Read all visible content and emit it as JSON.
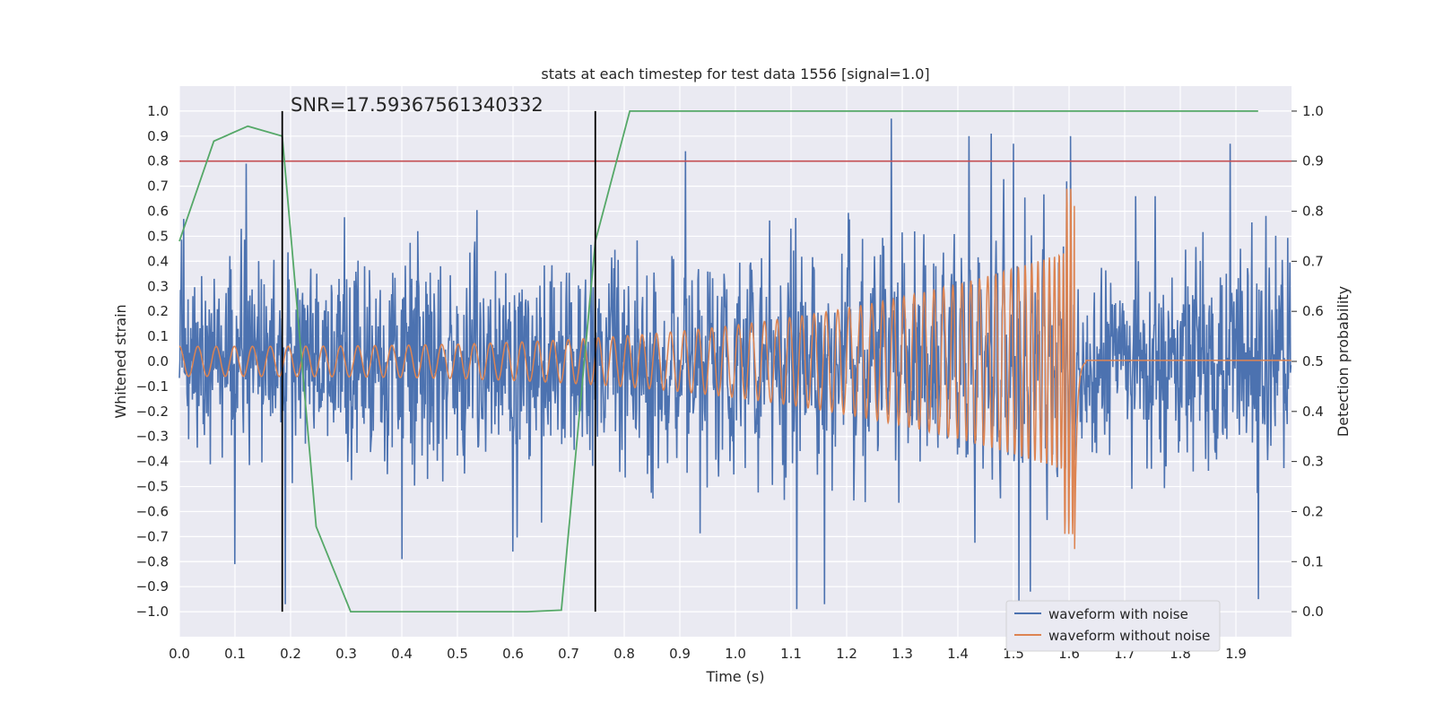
{
  "chart_data": {
    "type": "line",
    "title": "stats at each timestep for test data 1556 [signal=1.0]",
    "xlabel": "Time (s)",
    "ylabel": "Whitened strain",
    "y2label": "Detection probability",
    "annotation": "SNR=17.59367561340332",
    "xlim": [
      0.0,
      2.0
    ],
    "ylim": [
      -1.1,
      1.1
    ],
    "y2lim": [
      -0.05,
      1.05
    ],
    "x_ticks": [
      "0.0",
      "0.1",
      "0.2",
      "0.3",
      "0.4",
      "0.5",
      "0.6",
      "0.7",
      "0.8",
      "0.9",
      "1.0",
      "1.1",
      "1.2",
      "1.3",
      "1.4",
      "1.5",
      "1.6",
      "1.7",
      "1.8",
      "1.9"
    ],
    "y_ticks": [
      "1.0",
      "0.9",
      "0.8",
      "0.7",
      "0.6",
      "0.5",
      "0.4",
      "0.3",
      "0.2",
      "0.1",
      "0.0",
      "−0.1",
      "−0.2",
      "−0.3",
      "−0.4",
      "−0.5",
      "−0.6",
      "−0.7",
      "−0.8",
      "−0.9",
      "−1.0"
    ],
    "y2_ticks": [
      "1.0",
      "0.9",
      "0.8",
      "0.7",
      "0.6",
      "0.5",
      "0.4",
      "0.3",
      "0.2",
      "0.1",
      "0.0"
    ],
    "grid": true,
    "legend_position": "bottom-right",
    "colors": {
      "noisy": "#4c72b0",
      "clean": "#dd8452",
      "probability": "#55a868",
      "threshold": "#c44e52",
      "markers": "#000000",
      "background": "#eaeaf2"
    },
    "series": [
      {
        "name": "waveform with noise",
        "axis": "left",
        "style": "noisy",
        "duration": 2.0,
        "samples": 2048,
        "noise_std": 0.28,
        "noise_peaks": [
          {
            "x": 0.12,
            "y": 0.79
          },
          {
            "x": 0.1,
            "y": -0.81
          },
          {
            "x": 0.19,
            "y": -0.97
          },
          {
            "x": 0.4,
            "y": -0.79
          },
          {
            "x": 0.6,
            "y": -0.76
          },
          {
            "x": 0.91,
            "y": 0.84
          },
          {
            "x": 1.11,
            "y": -0.99
          },
          {
            "x": 1.16,
            "y": -0.97
          },
          {
            "x": 1.28,
            "y": 0.97
          },
          {
            "x": 1.42,
            "y": 0.9
          },
          {
            "x": 1.46,
            "y": 0.91
          },
          {
            "x": 1.51,
            "y": -0.96
          },
          {
            "x": 1.53,
            "y": -0.92
          },
          {
            "x": 1.5,
            "y": 0.87
          },
          {
            "x": 1.89,
            "y": 0.87
          },
          {
            "x": 1.94,
            "y": -0.95
          },
          {
            "x": 1.72,
            "y": 0.66
          }
        ]
      },
      {
        "name": "waveform without noise",
        "axis": "left",
        "style": "clean",
        "t_merger": 1.61,
        "amp_start": 0.06,
        "amp_end": 0.45,
        "freq_start_hz": 30,
        "freq_end_hz": 140,
        "merger_peak": 0.69,
        "merger_trough": -0.75
      },
      {
        "name": "detection probability",
        "axis": "right",
        "style": "probability",
        "x": [
          0.0,
          0.062,
          0.123,
          0.185,
          0.246,
          0.308,
          0.37,
          0.431,
          0.493,
          0.554,
          0.625,
          0.687,
          0.748,
          0.81,
          0.871,
          1.0,
          1.2,
          1.4,
          1.6,
          1.8,
          1.94
        ],
        "y": [
          0.74,
          0.94,
          0.97,
          0.95,
          0.17,
          0.0,
          0.0,
          0.0,
          0.0,
          0.0,
          0.0,
          0.003,
          0.74,
          1.0,
          1.0,
          1.0,
          1.0,
          1.0,
          1.0,
          1.0,
          1.0
        ]
      }
    ],
    "threshold_line": {
      "axis": "right",
      "y": 0.9
    },
    "marker_lines": [
      0.185,
      0.748
    ]
  }
}
